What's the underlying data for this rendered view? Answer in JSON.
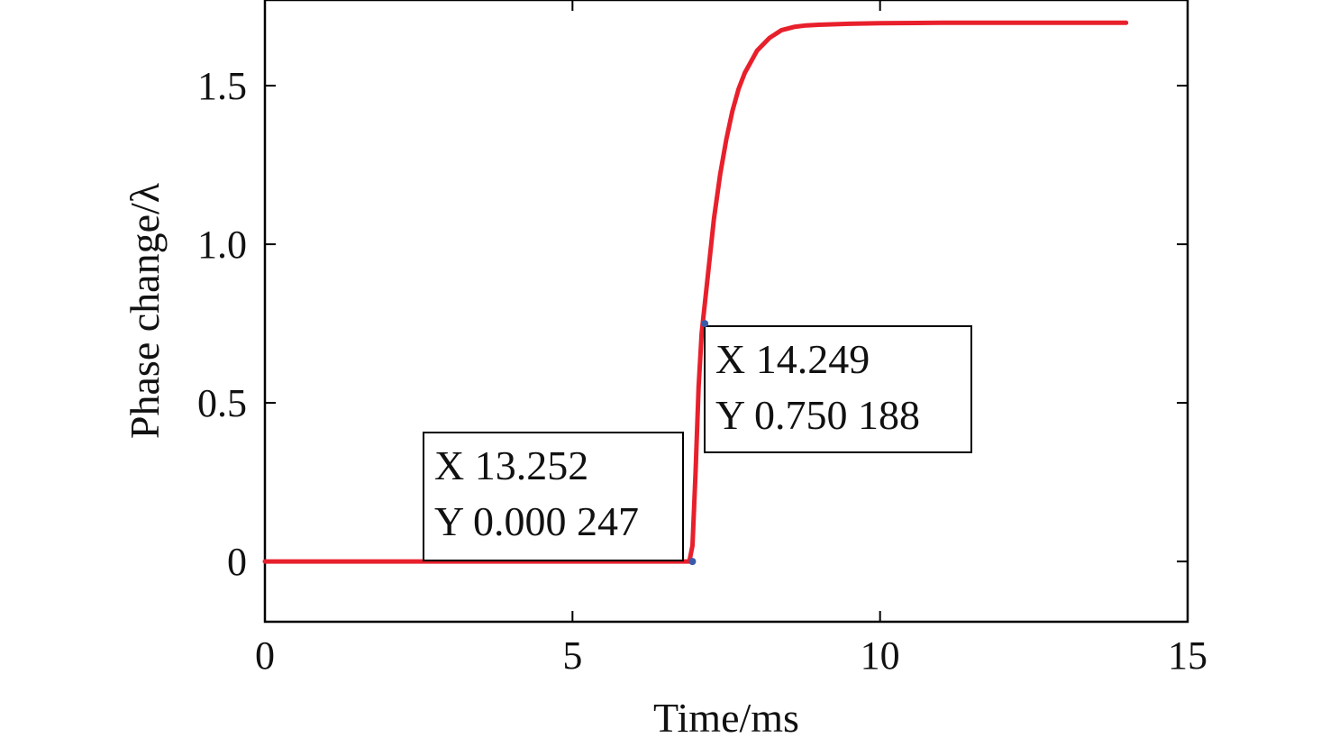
{
  "chart_data": {
    "type": "line",
    "xlabel": "Time/ms",
    "ylabel": "Phase change/λ",
    "xlim": [
      0,
      15
    ],
    "ylim": [
      -0.19,
      1.77
    ],
    "x_ticks": [
      0,
      5,
      10,
      15
    ],
    "y_ticks": [
      0,
      0.5,
      1.0,
      1.5
    ],
    "x_tick_labels": [
      "0",
      "5",
      "10",
      "15"
    ],
    "y_tick_labels": [
      "0",
      "0.5",
      "1.0",
      "1.5"
    ],
    "grid": false,
    "colors": {
      "line": "#e8202c",
      "marker": "#3a5aa8",
      "axis": "#000000"
    },
    "series": [
      {
        "x": [
          0,
          1,
          2,
          3,
          4,
          5,
          6,
          6.6,
          6.9,
          6.95,
          7.0,
          7.05,
          7.1,
          7.2,
          7.3,
          7.4,
          7.5,
          7.6,
          7.7,
          7.8,
          8.0,
          8.2,
          8.4,
          8.6,
          8.8,
          9.0,
          9.5,
          10.0,
          11.0,
          12.0,
          13.0,
          14.0
        ],
        "y": [
          0.0,
          0.0,
          0.0,
          0.0,
          0.0,
          0.0,
          0.0,
          0.0,
          0.0,
          0.05,
          0.28,
          0.55,
          0.72,
          0.9,
          1.08,
          1.22,
          1.33,
          1.42,
          1.49,
          1.54,
          1.61,
          1.65,
          1.675,
          1.685,
          1.69,
          1.692,
          1.695,
          1.697,
          1.698,
          1.698,
          1.698,
          1.698
        ]
      }
    ],
    "annotations": [
      {
        "lines": [
          "X 13.252",
          "Y 0.000 247"
        ],
        "point_x": 6.95,
        "point_y": 0.0
      },
      {
        "lines": [
          "X 14.249",
          "Y 0.750 188"
        ],
        "point_x": 7.15,
        "point_y": 0.75
      }
    ]
  }
}
